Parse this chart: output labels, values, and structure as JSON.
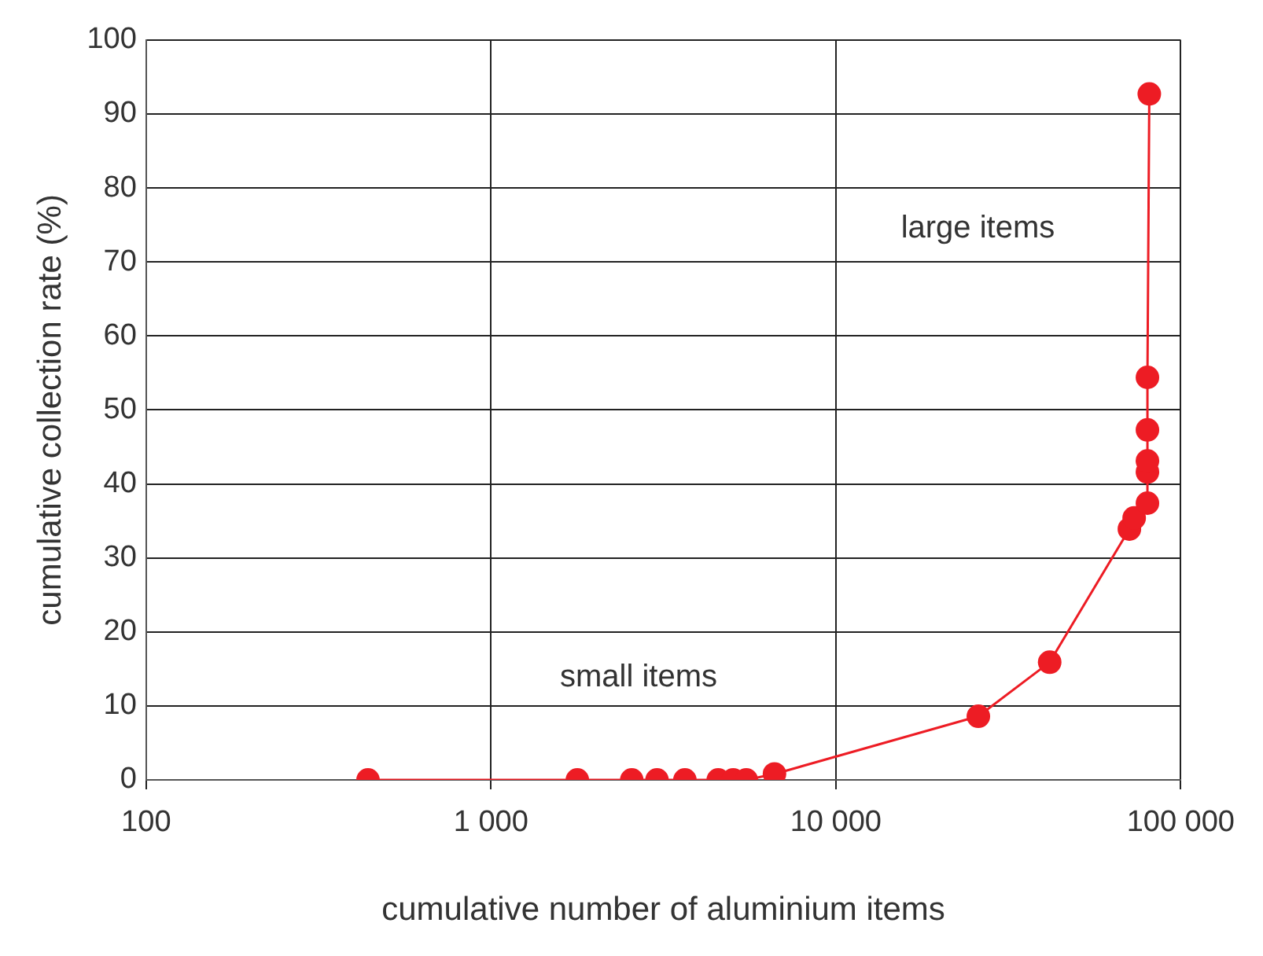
{
  "chart_data": {
    "type": "line",
    "xlabel": "cumulative number of aluminium items",
    "ylabel": "cumulative collection rate (%)",
    "x": [
      440,
      1780,
      2560,
      3030,
      3650,
      4560,
      5040,
      5500,
      6640,
      25900,
      41700,
      71000,
      73300,
      80100,
      80100,
      80100,
      80100,
      80100,
      81100
    ],
    "series": [
      {
        "color": "#ed1c24",
        "values": [
          0,
          0,
          0,
          0,
          0,
          0,
          0,
          0,
          0.8,
          8.6,
          15.9,
          33.9,
          35.4,
          37.4,
          41.6,
          43.1,
          47.3,
          54.4,
          92.7
        ]
      }
    ],
    "log": "x",
    "xlim": [
      100,
      100000
    ],
    "xticks": [
      {
        "value": 100,
        "label": "100"
      },
      {
        "value": 1000,
        "label": "1 000"
      },
      {
        "value": 10000,
        "label": "10 000"
      },
      {
        "value": 100000,
        "label": "100 000"
      }
    ],
    "ylim": [
      0,
      100
    ],
    "yticks": [
      0,
      10,
      20,
      30,
      40,
      50,
      60,
      70,
      80,
      90,
      100
    ],
    "grid": true,
    "marker": "circle",
    "line_style": "solid",
    "legend": false,
    "annotations": [
      "small items",
      "large items"
    ]
  }
}
